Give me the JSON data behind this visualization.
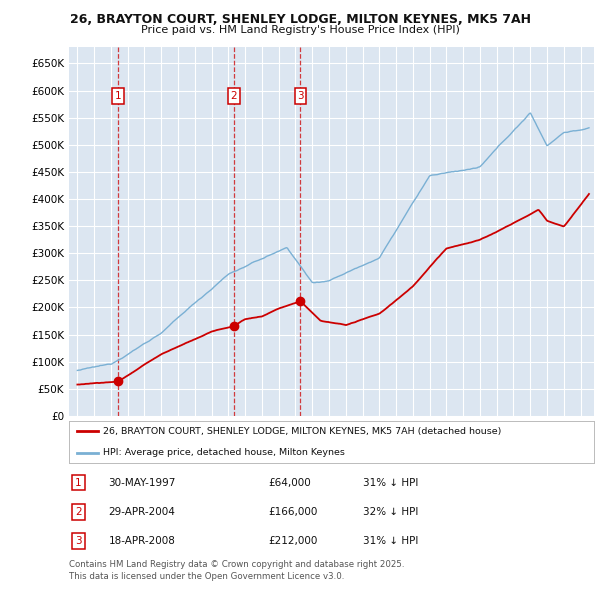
{
  "title_line1": "26, BRAYTON COURT, SHENLEY LODGE, MILTON KEYNES, MK5 7AH",
  "title_line2": "Price paid vs. HM Land Registry's House Price Index (HPI)",
  "background_color": "#dce6f1",
  "red_line_label": "26, BRAYTON COURT, SHENLEY LODGE, MILTON KEYNES, MK5 7AH (detached house)",
  "blue_line_label": "HPI: Average price, detached house, Milton Keynes",
  "trans_years": [
    1997.41,
    2004.33,
    2008.3
  ],
  "trans_prices": [
    64000,
    166000,
    212000
  ],
  "trans_nums": [
    1,
    2,
    3
  ],
  "trans_dates": [
    "30-MAY-1997",
    "29-APR-2004",
    "18-APR-2008"
  ],
  "trans_prices_str": [
    "£64,000",
    "£166,000",
    "£212,000"
  ],
  "trans_pcts": [
    "31% ↓ HPI",
    "32% ↓ HPI",
    "31% ↓ HPI"
  ],
  "footnote": "Contains HM Land Registry data © Crown copyright and database right 2025.\nThis data is licensed under the Open Government Licence v3.0.",
  "ylim": [
    0,
    680000
  ],
  "yticks": [
    0,
    50000,
    100000,
    150000,
    200000,
    250000,
    300000,
    350000,
    400000,
    450000,
    500000,
    550000,
    600000,
    650000
  ],
  "ytick_labels": [
    "£0",
    "£50K",
    "£100K",
    "£150K",
    "£200K",
    "£250K",
    "£300K",
    "£350K",
    "£400K",
    "£450K",
    "£500K",
    "£550K",
    "£600K",
    "£650K"
  ],
  "xlim_start": 1994.5,
  "xlim_end": 2025.8,
  "hpi_color": "#7ab0d4",
  "red_color": "#cc0000"
}
